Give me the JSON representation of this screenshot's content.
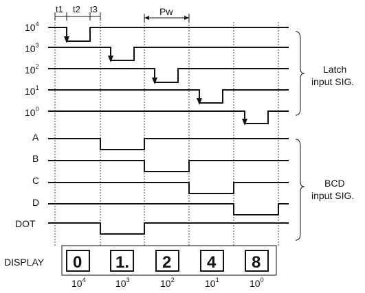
{
  "timing_labels": {
    "t1": "t1",
    "t2": "t2",
    "t3": "t3",
    "pw": "Pw"
  },
  "latch_signals": [
    {
      "base": "10",
      "exp": "4"
    },
    {
      "base": "10",
      "exp": "3"
    },
    {
      "base": "10",
      "exp": "2"
    },
    {
      "base": "10",
      "exp": "1"
    },
    {
      "base": "10",
      "exp": "0"
    }
  ],
  "latch_group_label": [
    "Latch",
    "input SIG."
  ],
  "bcd_signals": [
    "A",
    "B",
    "C",
    "D",
    "DOT"
  ],
  "bcd_group_label": [
    "BCD",
    "input SIG."
  ],
  "display": {
    "label": "DISPLAY",
    "digits": [
      "0",
      "1.",
      "2",
      "4",
      "8"
    ],
    "positions": [
      {
        "base": "10",
        "exp": "4"
      },
      {
        "base": "10",
        "exp": "3"
      },
      {
        "base": "10",
        "exp": "2"
      },
      {
        "base": "10",
        "exp": "1"
      },
      {
        "base": "10",
        "exp": "0"
      }
    ]
  }
}
